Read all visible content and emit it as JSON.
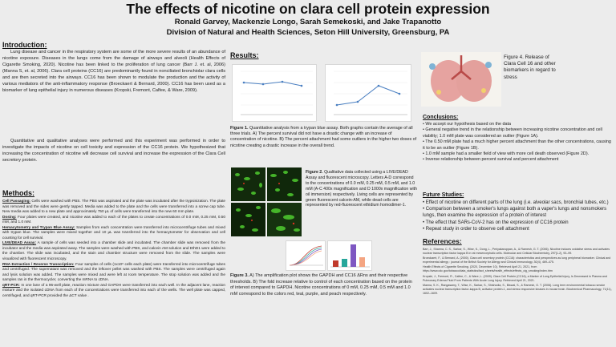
{
  "title": "The effects of nicotine on clara cell protein expression",
  "authors": "Ronald Garvey, Mackenzie Longo, Sarah Semekoski, and Jake Trapanotto",
  "affiliation": "Division of Natural and Health Sciences, Seton Hill University, Greensburg, PA",
  "introduction": {
    "heading": "Introduction:",
    "p1": "Lung disease and cancer in the respiratory system are some of the more severe results of an abundance of nicotine exposure. Diseases in the lungs come from the damage of airways and alveoli (Health Effects of Cigarette Smoking, 2020). Nicotine has been linked to the proliferation of lung cancer (Barr J. et. al, 2006) (Manna S, et. al, 2006). Clara cell proteins (CC16) are predominantly found in nonciliated bronchiolar clara cells and are then secreted into the airways. CC16 has been shown to modulate the production and the activity of various mediators of the anti-inflammatory response (Broeckaert & Bernard, 2000). CC16 has been used as a biomarker of lung epithelial injury in numerous diseases (Kropski, Fremont, Calfee, & Ware, 2009).",
    "p2": "Quantitative and qualitative analyses were performed and this experiment was performed in order to investigate the impacts of nicotine on cell toxicity and expression of the CC16 protein. We hypothesized that increasing the concentration of nicotine will decrease cell survival and increase the expression of the Clara Cell secretory protein."
  },
  "methods": {
    "heading": "Methods:",
    "items": [
      {
        "label": "Cell Passaging:",
        "text": " Cells were washed with PBS. The PBS was aspirated and the plate was incubated after the trypsinization. The plate was removed and the sides were gently tapped. Media was added to the plate and the cells were transferred into a screw cap tube. New media was added to a new plate and approximately 750 µL of cells were transferred into the new 60 mm plate."
      },
      {
        "label": "Dosing:",
        "text": " Four plates were created, and nicotine was added to each of the plates to create concentrations of 0.0 mM, 0.25 mM, 0.50 mM, and 1.0 mM."
      },
      {
        "label": "Hemacytometry and Trypan Blue Assay:",
        "text": " Samples from each concentration were transferred into microcentrifuge tubes and mixed with trypan blue. The samples were mixed together and 10 µL was transferred into the hemacytometer for observation and cell counting for cell survival."
      },
      {
        "label": "LIVE/DEAD Assay:",
        "text": " A sample of cells was seeded into a chamber slide and incubated. The chamber slide was removed from the incubator and the media was aspirated away. The samples were washed with PBS, and calcein AM solution and EthD1 were added to the chamber. The slide was incubated, and the stain and chamber structure were removed from the slide. The samples were visualized with fluorescent microscopy."
      },
      {
        "label": "RNA Extraction / Reverse Transcription:",
        "text": " Four samples of cells (1x10⁶ cells each plate) were transferred into microcentrifuge tubes and centrifuged. The supernatant was removed and the leftover pellet was washed with PBS. The samples were centrifuged again and lysis solution was added. The samples were mixed and were left at room temperature. The stop solution was added and the samples ran in the thermocycler, converting the mRNA to cDNA."
      },
      {
        "label": "qRT-PCR:",
        "text": " In one lane of a 96-well plate, reaction mixture and GAPDH were transferred into each well. In the adjacent lane, reaction mixture and the isolated cDNA from each of the concentrations were transferred into each of the wells. The well plate was capped, centrifuged, and qRT-PCR provided the ΔCT value ."
      }
    ]
  },
  "results": {
    "heading": "Results:",
    "fig1_caption_bold": "Figure 1.",
    "fig1_caption": " Quantitative analysis from a trypan blue assay. Both graphs contain the average of all three trials. A) The percent survival did not have a drastic change with an increase of concentration of nicotine. B) The percent attachment had some outliers in the higher two doses of nicotine creating a drastic increase in the overall trend.",
    "fig2_caption_bold": "Figure 2.",
    "fig2_caption": " Qualitative data collected using a LIVE/DEAD Assay and fluorescent microscopy. Letters A-D correspond to the concentrations of 0.0 mM, 0.25 mM, 0.5 mM, and 1.0 mM (A-C 400x magnification and D 1000x magnification with oil immersion) respectively. Living cells are represented by green fluorescent calcein-AM, while dead cells are represented by red-fluorescent ethidium homodimer-1.",
    "fig3_caption_bold": "Figure 3.",
    "fig3_caption": " A) The amplification plot shows the GAPDH and CC16 ΔRns and their respective thresholds. B) The fold increase relative to control of each concentration based on the protein of interest compared to GAPDH. Nicotine concentrations of 0 mM, 0.25 mM, 0.5 mM and 1.0 mM correspond to the colors red, teal, purple, and peach respectively."
  },
  "fig4_caption": "Figure 4. Release of Clara Cell 16 and other biomarkers in regard to stress",
  "conclusions": {
    "heading": "Conclusions:",
    "items": [
      "• We accept our hypothesis based on the data",
      "• General negative trend in the relationship between increasing nicotine concentration and cell viability; 1.0 mM plate was considered an outlier (Figure 1A).",
      "• The 0.50 mM plate had a much higher percent attachment than the other concentrations, causing it to be an outlier (Figure 1B).",
      "• 1.0 mM sample had a smaller field of view with more cell death observed (Figure 2D).",
      "• Inverse relationship between percent survival and percent attachment"
    ]
  },
  "future": {
    "heading": "Future Studies:",
    "items": [
      "• Effect of nicotine on different parts of the lung (i.e. alveolar sacs, bronchial tubes, etc.)",
      "• Comparison between a smoker's lungs against both a vaper's lungs and nonsmokers lungs, then examine the expression of a protein of interest",
      "• The effect that SARs-CoV-2 has on the expression of CC16 protein",
      "• Repeat study in order to observe cell attachment"
    ]
  },
  "references": {
    "heading": "References:",
    "items": [
      "Barr, J., Sharma, C. S., Sarkar, S., Wise, K., Dong, L., Periyakaruppan, A., & Ramesh, G. T. (2006). Nicotine induces oxidative stress and activates nuclear transcription factor kappa B in rat mesencephalic cells. Molecular and Cellular Biochemistry, 297(1-2), 93–99.",
      "Broeckaert, F., & Bernard, A. (2000). Clara cell secretory protein (CC16): characteristics and perspectives as lung peripheral biomarker. Clinical and experimental allergy : journal of the British Society for Allergy and Clinical Immunology, 30(4), 469–475.",
      "Health Effects of Cigarette Smoking. (2020, December 10). Retrieved April 21, 2021, from https://www.cdc.gov/tobacco/data_statistics/fact_sheets/health_effects/effects_cig_smoking/index.htm",
      "Kropski, J., Fremont, R., Calfee, C., & Ware, L. (2009). Clara Cell Protein (CC16), a Marker of Lung Epithelial Injury, Is Decreased in Plasma and Pulmonary Edema Fluid From Patients With Acute Lung Injury. Retrieved April 21, 2021.",
      "Manna, S. K., Rangasamy, T., Wise, K., Sarkar, S., Shishodia, S., Biswal, S., & Ramesh, G. T. (2006). Long term environmental tobacco smoke activates nuclear transcription factor-kappa B, activator protein-1, and stress responsive kinases in mouse brain. Biochemical Pharmacology, 71(11), 1602–1609."
    ]
  },
  "colors": {
    "series_red": "#c0392b",
    "series_teal": "#26a69a",
    "series_purple": "#7e57c2",
    "series_peach": "#f4a582",
    "line_blue": "#4a7fc1"
  }
}
